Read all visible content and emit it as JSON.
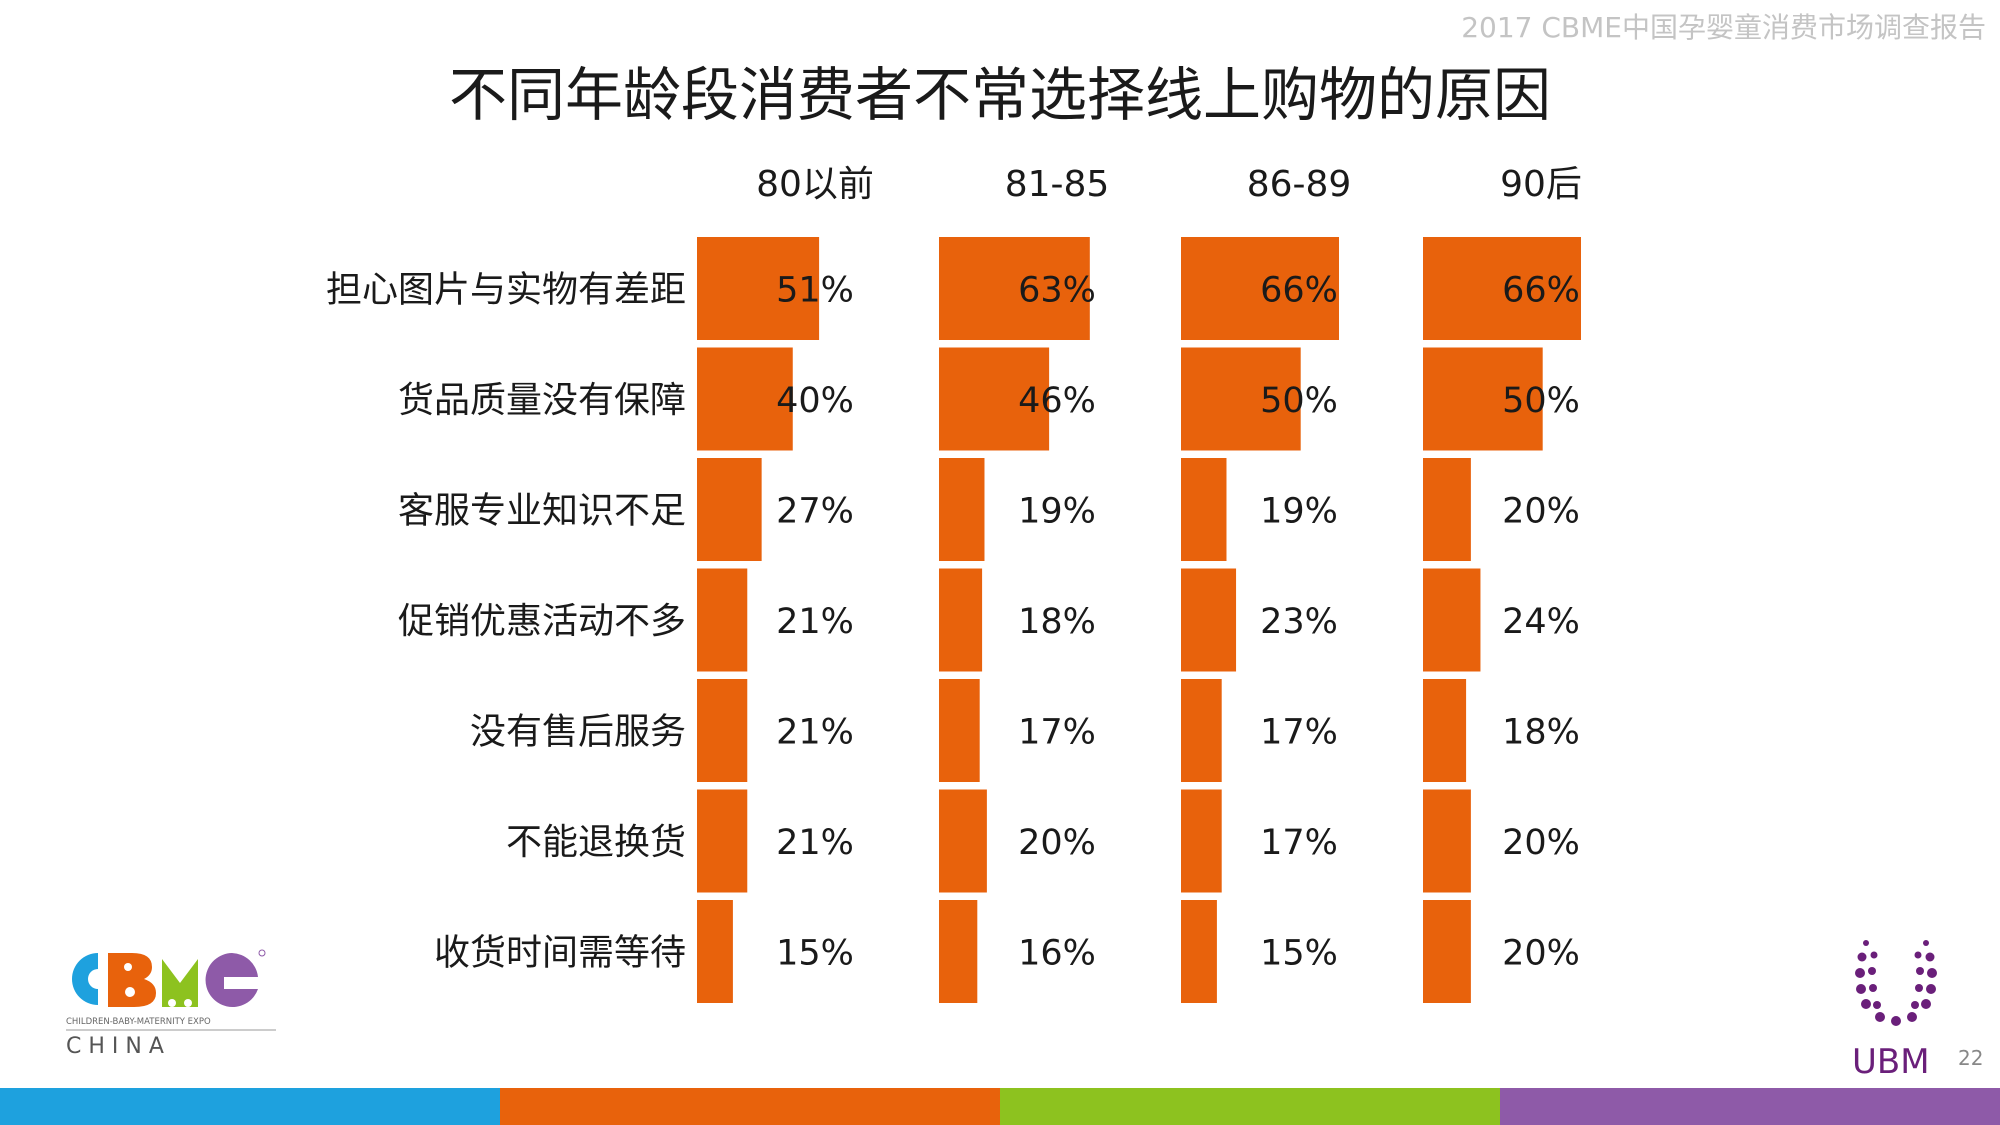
{
  "header": {
    "report_title": "2017 CBME中国孕婴童消费市场调查报告",
    "page_number": "22"
  },
  "chart_data": {
    "type": "bar",
    "title": "不同年龄段消费者不常选择线上购物的原因",
    "categories": [
      "担心图片与实物有差距",
      "货品质量没有保障",
      "客服专业知识不足",
      "促销优惠活动不多",
      "没有售后服务",
      "不能退换货",
      "收货时间需等待"
    ],
    "series": [
      {
        "name": "80以前",
        "values": [
          51,
          40,
          27,
          21,
          21,
          21,
          15
        ],
        "labels": [
          "51%",
          "40%",
          "27%",
          "21%",
          "21%",
          "21%",
          "15%"
        ]
      },
      {
        "name": "81-85",
        "values": [
          63,
          46,
          19,
          18,
          17,
          20,
          16
        ],
        "labels": [
          "63%",
          "46%",
          "19%",
          "18%",
          "17%",
          "20%",
          "16%"
        ]
      },
      {
        "name": "86-89",
        "values": [
          66,
          50,
          19,
          23,
          17,
          17,
          15
        ],
        "labels": [
          "66%",
          "50%",
          "19%",
          "23%",
          "17%",
          "17%",
          "15%"
        ]
      },
      {
        "name": "90后",
        "values": [
          66,
          50,
          20,
          24,
          18,
          20,
          20
        ],
        "labels": [
          "66%",
          "50%",
          "20%",
          "24%",
          "18%",
          "20%",
          "20%"
        ]
      }
    ],
    "unit": "%",
    "bar_color": "#e8620c"
  },
  "logos": {
    "cbme": {
      "tagline": "CHILDREN-BABY-MATERNITY EXPO",
      "country": "C H I N A"
    },
    "ubm": {
      "text": "UBM",
      "color": "#6a1f7a"
    }
  },
  "footer_colors": [
    "#1ea1de",
    "#e8620c",
    "#8dc21f",
    "#8e5aa8"
  ]
}
